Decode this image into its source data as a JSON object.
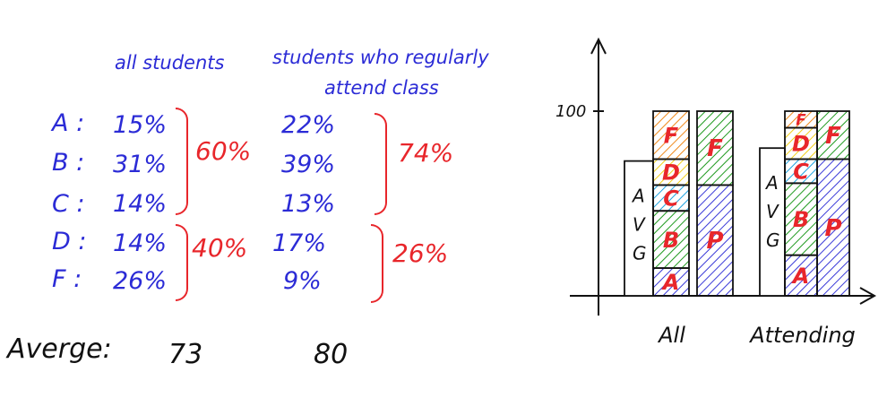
{
  "headers": {
    "all": "all students",
    "attending_line1": "students who regularly",
    "attending_line2": "attend class"
  },
  "rows": [
    {
      "grade": "A",
      "all": "15%",
      "attending": "22%"
    },
    {
      "grade": "B",
      "all": "31%",
      "attending": "39%"
    },
    {
      "grade": "C",
      "all": "14%",
      "attending": "13%"
    },
    {
      "grade": "D",
      "all": "14%",
      "attending": "17%"
    },
    {
      "grade": "F",
      "all": "26%",
      "attending": "9%"
    }
  ],
  "groups": {
    "all_pass": "60%",
    "all_fail": "40%",
    "attending_pass": "74%",
    "attending_fail": "26%"
  },
  "average": {
    "label": "Averge:",
    "all": "73",
    "attending": "80"
  },
  "colors": {
    "ink": "#2b2bd6",
    "accent": "#e8262b",
    "A": "#3a3ad8",
    "B": "#1f9a1f",
    "C": "#1fa3e0",
    "D": "#f2cf1b",
    "F": "#f08a1c",
    "P": "#3a3ad8",
    "Fpass": "#1f9a1f"
  },
  "chart_data": {
    "type": "bar",
    "categories": [
      "All",
      "Attending"
    ],
    "ytick": "100",
    "ylim": [
      0,
      100
    ],
    "grade_stack": [
      {
        "name": "A",
        "values": [
          15,
          22
        ]
      },
      {
        "name": "B",
        "values": [
          31,
          39
        ]
      },
      {
        "name": "C",
        "values": [
          14,
          13
        ]
      },
      {
        "name": "D",
        "values": [
          14,
          17
        ]
      },
      {
        "name": "F",
        "values": [
          26,
          9
        ]
      }
    ],
    "pass_fail": [
      {
        "name": "P",
        "values": [
          60,
          74
        ]
      },
      {
        "name": "F",
        "values": [
          40,
          26
        ]
      }
    ],
    "avg": {
      "label": [
        "A",
        "V",
        "G"
      ],
      "values": [
        73,
        80
      ]
    }
  }
}
